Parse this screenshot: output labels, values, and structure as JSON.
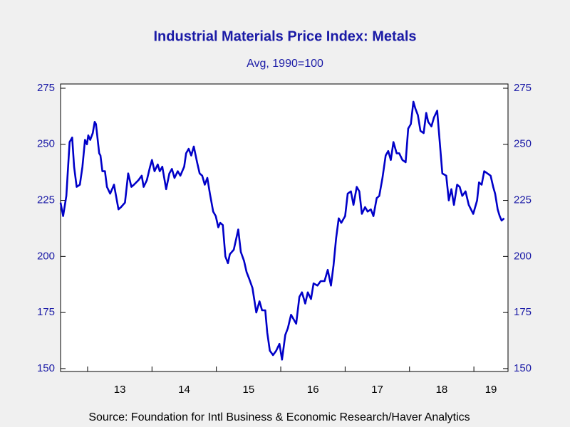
{
  "chart_data": {
    "type": "line",
    "title": "Industrial Materials Price Index: Metals",
    "subtitle": "Avg, 1990=100",
    "source": "Source:  Foundation for Intl Business & Economic Research/Haver Analytics",
    "x": [
      12.58,
      12.62,
      12.67,
      12.72,
      12.76,
      12.79,
      12.83,
      12.88,
      12.92,
      12.96,
      12.99,
      13.01,
      13.04,
      13.08,
      13.11,
      13.13,
      13.18,
      13.2,
      13.23,
      13.27,
      13.3,
      13.35,
      13.41,
      13.48,
      13.52,
      13.58,
      13.63,
      13.68,
      13.72,
      13.79,
      13.84,
      13.87,
      13.92,
      13.97,
      14.0,
      14.04,
      14.09,
      14.12,
      14.16,
      14.22,
      14.27,
      14.31,
      14.35,
      14.4,
      14.44,
      14.5,
      14.53,
      14.57,
      14.61,
      14.65,
      14.7,
      14.74,
      14.78,
      14.82,
      14.86,
      14.9,
      14.95,
      14.99,
      15.03,
      15.06,
      15.1,
      15.14,
      15.18,
      15.21,
      15.27,
      15.34,
      15.38,
      15.43,
      15.47,
      15.51,
      15.56,
      15.62,
      15.67,
      15.71,
      15.76,
      15.79,
      15.83,
      15.88,
      15.93,
      15.98,
      16.02,
      16.07,
      16.11,
      16.16,
      16.2,
      16.24,
      16.29,
      16.33,
      16.38,
      16.42,
      16.47,
      16.51,
      16.57,
      16.62,
      16.68,
      16.73,
      16.78,
      16.82,
      16.86,
      16.9,
      16.94,
      17.0,
      17.04,
      17.09,
      17.13,
      17.18,
      17.22,
      17.26,
      17.31,
      17.35,
      17.4,
      17.44,
      17.49,
      17.53,
      17.58,
      17.63,
      17.67,
      17.71,
      17.75,
      17.8,
      17.84,
      17.89,
      17.94,
      17.98,
      18.02,
      18.06,
      18.09,
      18.13,
      18.17,
      18.22,
      18.26,
      18.29,
      18.34,
      18.38,
      18.43,
      18.47,
      18.51,
      18.57,
      18.61,
      18.65,
      18.69,
      18.74,
      18.78,
      18.82,
      18.87,
      18.92,
      18.99,
      19.05,
      19.08,
      19.12,
      19.16,
      19.21,
      19.26,
      19.3,
      19.33,
      19.37,
      19.4,
      19.43,
      19.47
    ],
    "series": [
      {
        "color": "#0000c8",
        "values": [
          224,
          218,
          227,
          251,
          253,
          240,
          231,
          232,
          240,
          252,
          250,
          254,
          252,
          255,
          260,
          259,
          246,
          245,
          238,
          238,
          231,
          228,
          232,
          221,
          222,
          224,
          237,
          231,
          232,
          234,
          236,
          231,
          234,
          240,
          243,
          238,
          241,
          238,
          240,
          230,
          237,
          239,
          235,
          238,
          236,
          240,
          246,
          248,
          245,
          249,
          242,
          237,
          236,
          232,
          235,
          228,
          220,
          218,
          213,
          215,
          214,
          200,
          197,
          201,
          203,
          212,
          202,
          198,
          193,
          190,
          186,
          175,
          180,
          176,
          176,
          166,
          158,
          156,
          158,
          161,
          154,
          165,
          168,
          174,
          172,
          170,
          182,
          184,
          179,
          184,
          181,
          188,
          187,
          189,
          189,
          194,
          187,
          196,
          208,
          217,
          215,
          218,
          228,
          229,
          223,
          231,
          229,
          219,
          222,
          220,
          221,
          218,
          226,
          227,
          235,
          245,
          247,
          243,
          251,
          246,
          246,
          243,
          242,
          257,
          259,
          269,
          266,
          263,
          256,
          255,
          264,
          260,
          258,
          262,
          265,
          251,
          237,
          236,
          225,
          230,
          223,
          232,
          231,
          227,
          229,
          223,
          219,
          225,
          233,
          232,
          238,
          237,
          236,
          231,
          228,
          221,
          218,
          216,
          217
        ]
      }
    ],
    "xlim": [
      12.58,
      19.53
    ],
    "xticks": [
      13,
      14,
      15,
      16,
      17,
      18,
      19
    ],
    "ylim": [
      148.7,
      276.9
    ],
    "yticks": [
      150,
      175,
      200,
      225,
      250,
      275
    ],
    "y2lim": [
      148.7,
      276.9
    ],
    "y2ticks": [
      150,
      175,
      200,
      225,
      250,
      275
    ]
  }
}
